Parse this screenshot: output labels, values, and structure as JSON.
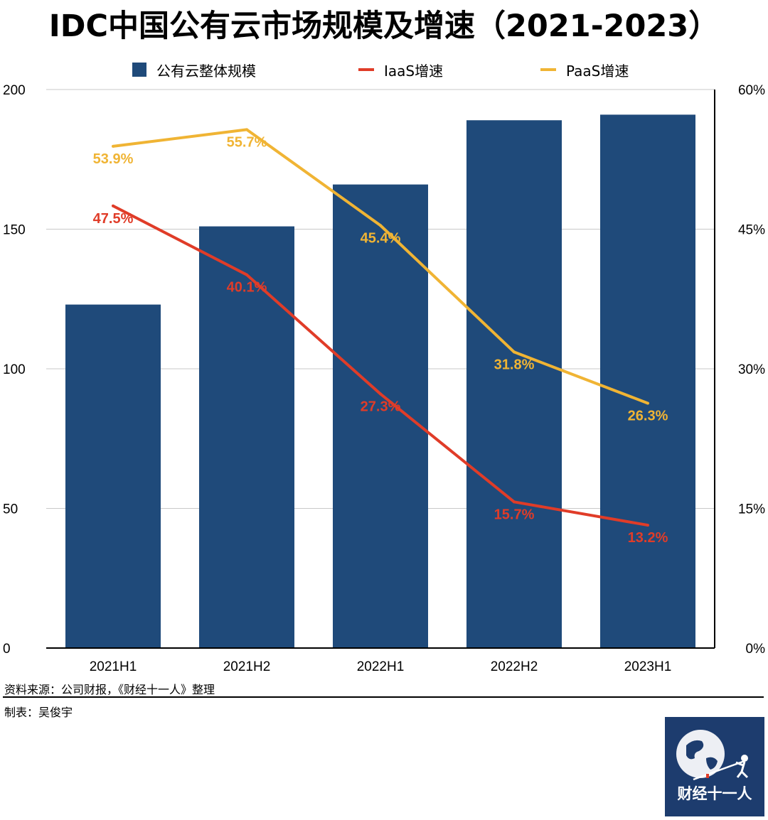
{
  "title": "IDC中国公有云市场规模及增速（2021-2023）",
  "legend": {
    "bar_label": "公有云整体规模",
    "iaas_label": "IaaS增速",
    "paas_label": "PaaS增速"
  },
  "colors": {
    "bar": "#1f4a7a",
    "iaas": "#e03c28",
    "paas": "#f0b434"
  },
  "chart_data": {
    "type": "bar",
    "categories": [
      "2021H1",
      "2021H2",
      "2022H1",
      "2022H2",
      "2023H1"
    ],
    "series": [
      {
        "name": "公有云整体规模",
        "type": "bar",
        "axis": "left",
        "values": [
          123,
          151,
          166,
          189,
          191
        ]
      },
      {
        "name": "IaaS增速",
        "type": "line",
        "axis": "right",
        "values": [
          47.5,
          40.1,
          27.3,
          15.7,
          13.2
        ],
        "labels": [
          "47.5%",
          "40.1%",
          "27.3%",
          "15.7%",
          "13.2%"
        ]
      },
      {
        "name": "PaaS增速",
        "type": "line",
        "axis": "right",
        "values": [
          53.9,
          55.7,
          45.4,
          31.8,
          26.3
        ],
        "labels": [
          "53.9%",
          "55.7%",
          "45.4%",
          "31.8%",
          "26.3%"
        ]
      }
    ],
    "ylim": [
      0,
      200
    ],
    "y_ticks": [
      "0",
      "50",
      "100",
      "150",
      "200"
    ],
    "y2lim": [
      0,
      60
    ],
    "y2_ticks": [
      "0%",
      "15%",
      "30%",
      "45%",
      "60%"
    ],
    "grid": true,
    "legend_position": "top"
  },
  "footer": {
    "source": "资料来源：公司财报，《财经十一人》整理",
    "author": "制表：吴俊宇",
    "logo_text": "财经十一人"
  }
}
